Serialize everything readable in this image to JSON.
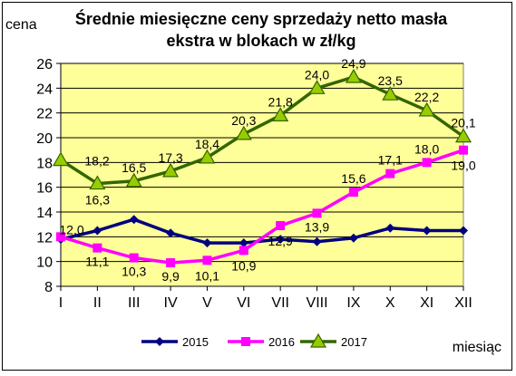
{
  "chart_data": {
    "type": "line",
    "title_line1": "Średnie miesięczne ceny sprzedaży netto masła",
    "title_line2": "ekstra w blokach w zł/kg",
    "ylabel": "cena",
    "xlabel": "miesiąc",
    "categories": [
      "I",
      "II",
      "III",
      "IV",
      "V",
      "VI",
      "VII",
      "VIII",
      "IX",
      "X",
      "XI",
      "XII"
    ],
    "ylim": [
      8,
      26
    ],
    "yticks": [
      8,
      10,
      12,
      14,
      16,
      18,
      20,
      22,
      24,
      26
    ],
    "grid": true,
    "plot_background": "#FFFF99",
    "legend_position": "bottom",
    "series": [
      {
        "name": "2015",
        "color": "#000080",
        "marker": "diamond",
        "values": [
          11.8,
          12.5,
          13.4,
          12.3,
          11.5,
          11.5,
          11.8,
          11.6,
          11.9,
          12.7,
          12.5,
          12.5
        ],
        "labels": null
      },
      {
        "name": "2016",
        "color": "#FF00FF",
        "marker": "square",
        "values": [
          12.0,
          11.1,
          10.3,
          9.9,
          10.1,
          10.9,
          12.9,
          13.9,
          15.6,
          17.1,
          18.0,
          19.0
        ],
        "labels": [
          "12,0",
          "11,1",
          "10,3",
          "9,9",
          "10,1",
          "10,9",
          "12,9",
          "13,9",
          "15,6",
          "17,1",
          "18,0",
          "19,0"
        ]
      },
      {
        "name": "2017",
        "color": "#336600",
        "marker": "triangle",
        "values": [
          18.2,
          16.3,
          16.5,
          17.3,
          18.4,
          20.3,
          21.8,
          24.0,
          24.9,
          23.5,
          22.2,
          20.1
        ],
        "labels": [
          "18,2",
          "16,3",
          "16,5",
          "17,3",
          "18,4",
          "20,3",
          "21,8",
          "24,0",
          "24,9",
          "23,5",
          "22,2",
          "20,1"
        ]
      }
    ]
  }
}
